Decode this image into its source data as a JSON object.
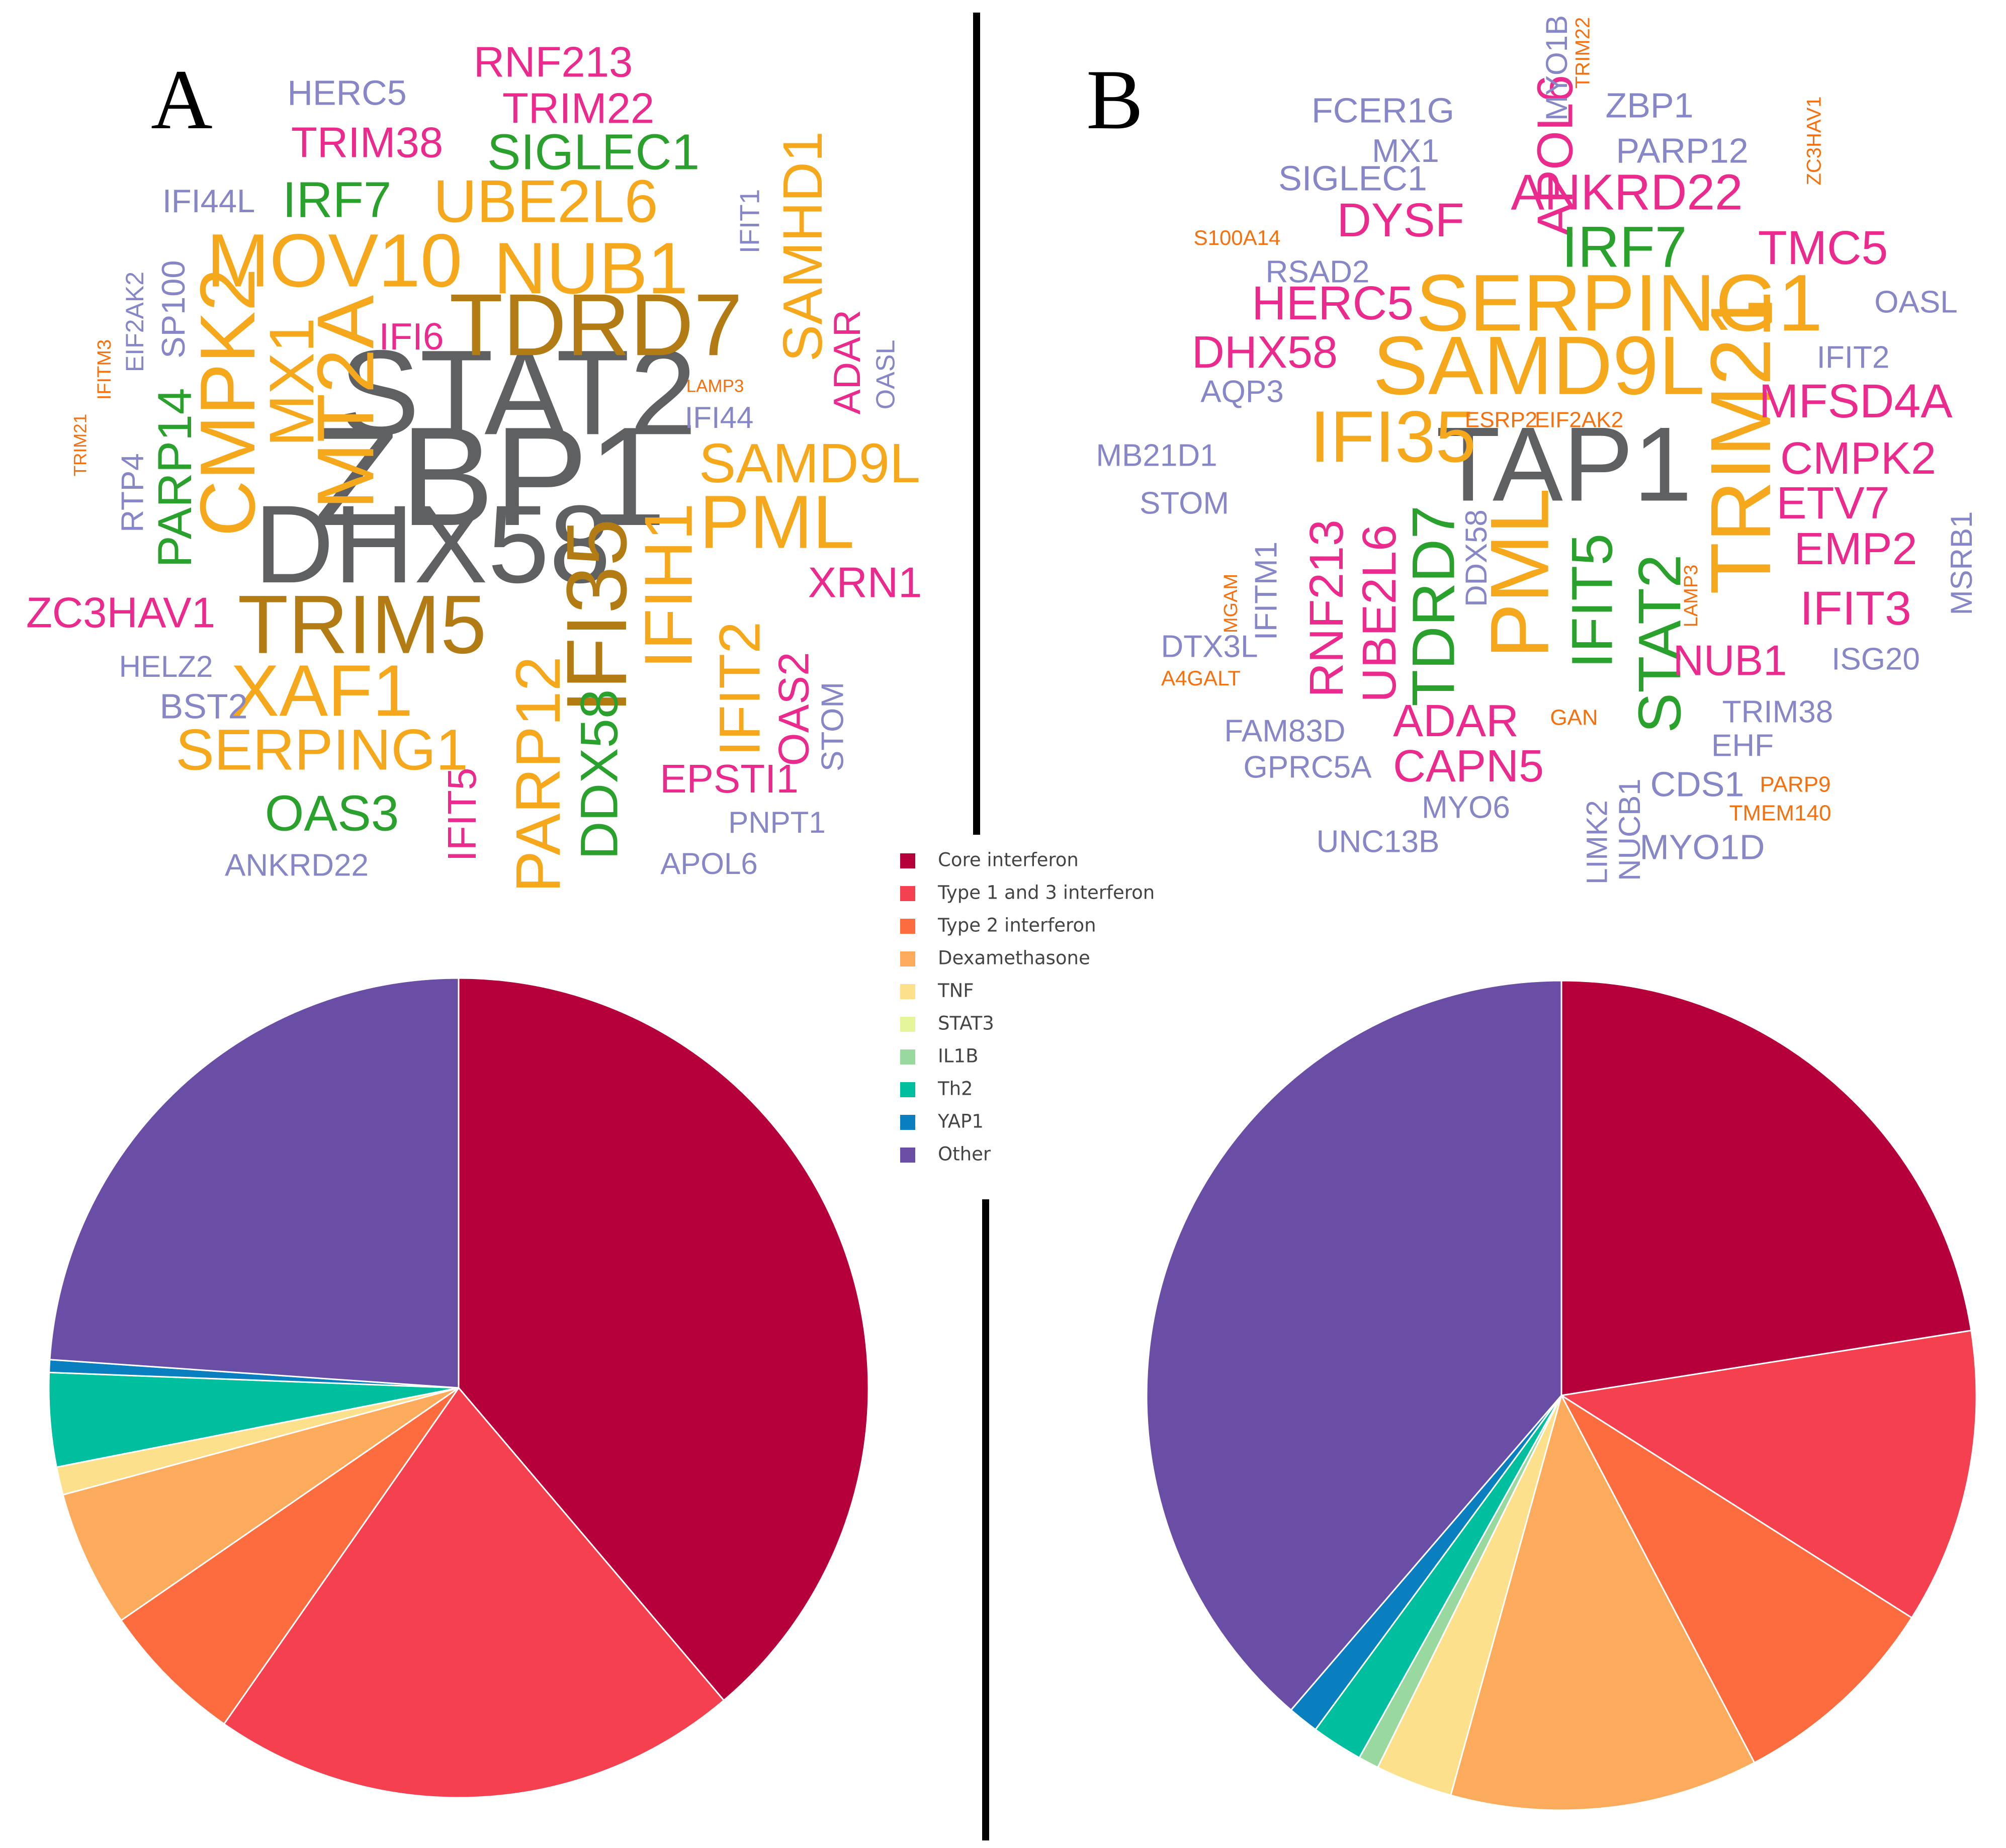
{
  "colors": {
    "gray": "#5f6062",
    "brown": "#b27b14",
    "gold": "#f6a81c",
    "green": "#2ba12d",
    "magenta": "#ea2a8d",
    "periwinkle": "#8787c7",
    "orange": "#f5700f",
    "divider": "#000000"
  },
  "panels": [
    "A",
    "B"
  ],
  "legend": {
    "placement": "center",
    "items": [
      {
        "label": "Core interferon",
        "color": "#b5003b"
      },
      {
        "label": "Type 1 and 3 interferon",
        "color": "#f4404f"
      },
      {
        "label": "Type 2 interferon",
        "color": "#fc6c3f"
      },
      {
        "label": "Dexamethasone",
        "color": "#fcaa5c"
      },
      {
        "label": "TNF",
        "color": "#fde08b"
      },
      {
        "label": "STAT3",
        "color": "#e5f59a"
      },
      {
        "label": "IL1B",
        "color": "#99d9a0"
      },
      {
        "label": "Th2",
        "color": "#00bf9e"
      },
      {
        "label": "YAP1",
        "color": "#0a7fbf"
      },
      {
        "label": "Other",
        "color": "#6a4da5"
      }
    ]
  },
  "chart_data": [
    {
      "type": "wordcloud",
      "panel": "A",
      "words": [
        {
          "text": "ZBP1",
          "color": "gray"
        },
        {
          "text": "STAT2",
          "color": "gray"
        },
        {
          "text": "DHX58",
          "color": "gray"
        },
        {
          "text": "TDRD7",
          "color": "brown"
        },
        {
          "text": "TRIM5",
          "color": "brown"
        },
        {
          "text": "IFI35",
          "color": "brown"
        },
        {
          "text": "MOV10",
          "color": "gold"
        },
        {
          "text": "NUB1",
          "color": "gold"
        },
        {
          "text": "UBE2L6",
          "color": "gold"
        },
        {
          "text": "MT2A",
          "color": "gold"
        },
        {
          "text": "CMPK2",
          "color": "gold"
        },
        {
          "text": "MX1",
          "color": "gold"
        },
        {
          "text": "SAMHD1",
          "color": "gold"
        },
        {
          "text": "SAMD9L",
          "color": "gold"
        },
        {
          "text": "PML",
          "color": "gold"
        },
        {
          "text": "IFIH1",
          "color": "gold"
        },
        {
          "text": "XAF1",
          "color": "gold"
        },
        {
          "text": "SERPING1",
          "color": "gold"
        },
        {
          "text": "PARP12",
          "color": "gold"
        },
        {
          "text": "IFIT2",
          "color": "gold"
        },
        {
          "text": "IRF7",
          "color": "green"
        },
        {
          "text": "SIGLEC1",
          "color": "green"
        },
        {
          "text": "PARP14",
          "color": "green"
        },
        {
          "text": "OAS3",
          "color": "green"
        },
        {
          "text": "DDX58",
          "color": "green"
        },
        {
          "text": "RNF213",
          "color": "magenta"
        },
        {
          "text": "TRIM22",
          "color": "magenta"
        },
        {
          "text": "TRIM38",
          "color": "magenta"
        },
        {
          "text": "IFI6",
          "color": "magenta"
        },
        {
          "text": "ADAR",
          "color": "magenta"
        },
        {
          "text": "XRN1",
          "color": "magenta"
        },
        {
          "text": "ZC3HAV1",
          "color": "magenta"
        },
        {
          "text": "OAS2",
          "color": "magenta"
        },
        {
          "text": "EPSTI1",
          "color": "magenta"
        },
        {
          "text": "IFIT5",
          "color": "magenta"
        },
        {
          "text": "HERC5",
          "color": "periwinkle"
        },
        {
          "text": "IFI44L",
          "color": "periwinkle"
        },
        {
          "text": "SP100",
          "color": "periwinkle"
        },
        {
          "text": "EIF2AK2",
          "color": "periwinkle"
        },
        {
          "text": "RTP4",
          "color": "periwinkle"
        },
        {
          "text": "IFIT1",
          "color": "periwinkle"
        },
        {
          "text": "OASL",
          "color": "periwinkle"
        },
        {
          "text": "IFI44",
          "color": "periwinkle"
        },
        {
          "text": "HELZ2",
          "color": "periwinkle"
        },
        {
          "text": "BST2",
          "color": "periwinkle"
        },
        {
          "text": "STOM",
          "color": "periwinkle"
        },
        {
          "text": "PNPT1",
          "color": "periwinkle"
        },
        {
          "text": "ANKRD22",
          "color": "periwinkle"
        },
        {
          "text": "APOL6",
          "color": "periwinkle"
        },
        {
          "text": "IFITM3",
          "color": "orange"
        },
        {
          "text": "TRIM21",
          "color": "orange"
        },
        {
          "text": "LAMP3",
          "color": "orange"
        }
      ]
    },
    {
      "type": "wordcloud",
      "panel": "B",
      "words": [
        {
          "text": "TAP1",
          "color": "gray"
        },
        {
          "text": "SERPING1",
          "color": "gold"
        },
        {
          "text": "SAMD9L",
          "color": "gold"
        },
        {
          "text": "IFI35",
          "color": "gold"
        },
        {
          "text": "TRIM21",
          "color": "gold"
        },
        {
          "text": "PML",
          "color": "gold"
        },
        {
          "text": "APOL6",
          "color": "magenta"
        },
        {
          "text": "IRF7",
          "color": "green"
        },
        {
          "text": "TDRD7",
          "color": "green"
        },
        {
          "text": "IFIT5",
          "color": "green"
        },
        {
          "text": "STAT2",
          "color": "green"
        },
        {
          "text": "ANKRD22",
          "color": "magenta"
        },
        {
          "text": "DYSF",
          "color": "magenta"
        },
        {
          "text": "TMC5",
          "color": "magenta"
        },
        {
          "text": "HERC5",
          "color": "magenta"
        },
        {
          "text": "DHX58",
          "color": "magenta"
        },
        {
          "text": "MFSD4A",
          "color": "magenta"
        },
        {
          "text": "CMPK2",
          "color": "magenta"
        },
        {
          "text": "ETV7",
          "color": "magenta"
        },
        {
          "text": "EMP2",
          "color": "magenta"
        },
        {
          "text": "IFIT3",
          "color": "magenta"
        },
        {
          "text": "NUB1",
          "color": "magenta"
        },
        {
          "text": "RNF213",
          "color": "magenta"
        },
        {
          "text": "UBE2L6",
          "color": "magenta"
        },
        {
          "text": "ADAR",
          "color": "magenta"
        },
        {
          "text": "CAPN5",
          "color": "magenta"
        },
        {
          "text": "FCER1G",
          "color": "periwinkle"
        },
        {
          "text": "MX1",
          "color": "periwinkle"
        },
        {
          "text": "MYO1B",
          "color": "periwinkle"
        },
        {
          "text": "ZBP1",
          "color": "periwinkle"
        },
        {
          "text": "PARP12",
          "color": "periwinkle"
        },
        {
          "text": "SIGLEC1",
          "color": "periwinkle"
        },
        {
          "text": "RSAD2",
          "color": "periwinkle"
        },
        {
          "text": "OASL",
          "color": "periwinkle"
        },
        {
          "text": "IFIT2",
          "color": "periwinkle"
        },
        {
          "text": "AQP3",
          "color": "periwinkle"
        },
        {
          "text": "MB21D1",
          "color": "periwinkle"
        },
        {
          "text": "STOM",
          "color": "periwinkle"
        },
        {
          "text": "IFITM1",
          "color": "periwinkle"
        },
        {
          "text": "DDX58",
          "color": "periwinkle"
        },
        {
          "text": "MSRB1",
          "color": "periwinkle"
        },
        {
          "text": "DTX3L",
          "color": "periwinkle"
        },
        {
          "text": "ISG20",
          "color": "periwinkle"
        },
        {
          "text": "TRIM38",
          "color": "periwinkle"
        },
        {
          "text": "EHF",
          "color": "periwinkle"
        },
        {
          "text": "FAM83D",
          "color": "periwinkle"
        },
        {
          "text": "GPRC5A",
          "color": "periwinkle"
        },
        {
          "text": "MYO6",
          "color": "periwinkle"
        },
        {
          "text": "CDS1",
          "color": "periwinkle"
        },
        {
          "text": "UNC13B",
          "color": "periwinkle"
        },
        {
          "text": "LIMK2",
          "color": "periwinkle"
        },
        {
          "text": "NUCB1",
          "color": "periwinkle"
        },
        {
          "text": "MYO1D",
          "color": "periwinkle"
        },
        {
          "text": "TRIM22",
          "color": "orange"
        },
        {
          "text": "ZC3HAV1",
          "color": "orange"
        },
        {
          "text": "S100A14",
          "color": "orange"
        },
        {
          "text": "ESRP2",
          "color": "orange"
        },
        {
          "text": "EIF2AK2",
          "color": "orange"
        },
        {
          "text": "MGAM",
          "color": "orange"
        },
        {
          "text": "LAMP3",
          "color": "orange"
        },
        {
          "text": "A4GALT",
          "color": "orange"
        },
        {
          "text": "GAN",
          "color": "orange"
        },
        {
          "text": "PARP9",
          "color": "orange"
        },
        {
          "text": "TMEM140",
          "color": "orange"
        }
      ]
    },
    {
      "type": "pie",
      "panel": "A",
      "categories": [
        "Core interferon",
        "Type 1 and 3 interferon",
        "Type 2 interferon",
        "Dexamethasone",
        "TNF",
        "STAT3",
        "IL1B",
        "Th2",
        "YAP1",
        "Other"
      ],
      "values": [
        38.8,
        20.9,
        5.7,
        5.4,
        1.1,
        0,
        0,
        3.7,
        0.5,
        23.9
      ],
      "start_angle_deg": 0,
      "direction": "clockwise"
    },
    {
      "type": "pie",
      "panel": "B",
      "categories": [
        "Core interferon",
        "Type 1 and 3 interferon",
        "Type 2 interferon",
        "Dexamethasone",
        "TNF",
        "STAT3",
        "IL1B",
        "Th2",
        "YAP1",
        "Other"
      ],
      "values": [
        22.5,
        11.5,
        8.3,
        12.0,
        3.0,
        0,
        0.8,
        2.0,
        1.2,
        38.7
      ],
      "start_angle_deg": 0,
      "direction": "clockwise"
    }
  ]
}
